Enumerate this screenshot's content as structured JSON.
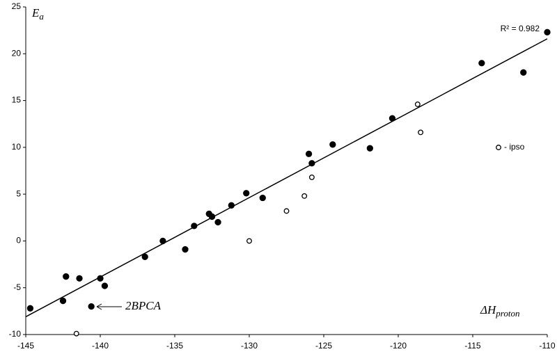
{
  "chart_data": {
    "type": "scatter",
    "y_label": {
      "main": "E",
      "sub": "a"
    },
    "x_label": {
      "main": "ΔH",
      "sub": "proton"
    },
    "annotations": [
      "R² = 0.982",
      "2BPCA"
    ],
    "xlim": [
      -145,
      -110
    ],
    "xticks": [
      -145,
      -140,
      -135,
      -130,
      -125,
      -120,
      -115,
      -110
    ],
    "ylim": [
      -10,
      25
    ],
    "yticks": [
      -10,
      -5,
      0,
      5,
      10,
      15,
      20,
      25
    ],
    "series": [
      {
        "color": "#000000",
        "filled": true,
        "x": [
          -144.7,
          -142.5,
          -142.3,
          -141.4,
          -140.0,
          -139.7,
          -140.6,
          -137.0,
          -135.8,
          -134.3,
          -133.7,
          -132.7,
          -132.5,
          -132.1,
          -131.2,
          -130.2,
          -129.1,
          -126.0,
          -125.8,
          -124.4,
          -121.9,
          -120.4,
          -114.4,
          -111.6,
          -110.0
        ],
        "values": [
          -7.2,
          -6.4,
          -3.8,
          -4.0,
          -4.0,
          -4.8,
          -7.0,
          -1.7,
          0.0,
          -0.9,
          1.6,
          2.9,
          2.6,
          2.0,
          3.8,
          5.1,
          4.6,
          9.3,
          8.3,
          10.3,
          9.9,
          13.1,
          19.0,
          18.0,
          22.3
        ]
      },
      {
        "name": "- ipso",
        "color": "#000000",
        "filled": false,
        "x": [
          -141.6,
          -130.0,
          -127.5,
          -126.3,
          -125.8,
          -118.7,
          -118.5
        ],
        "values": [
          -9.9,
          0.0,
          3.2,
          4.8,
          6.8,
          14.6,
          11.6
        ]
      }
    ],
    "fit": {
      "x": [
        -145,
        -110
      ],
      "y": [
        -8.1,
        21.6
      ],
      "color": "#000000"
    }
  }
}
